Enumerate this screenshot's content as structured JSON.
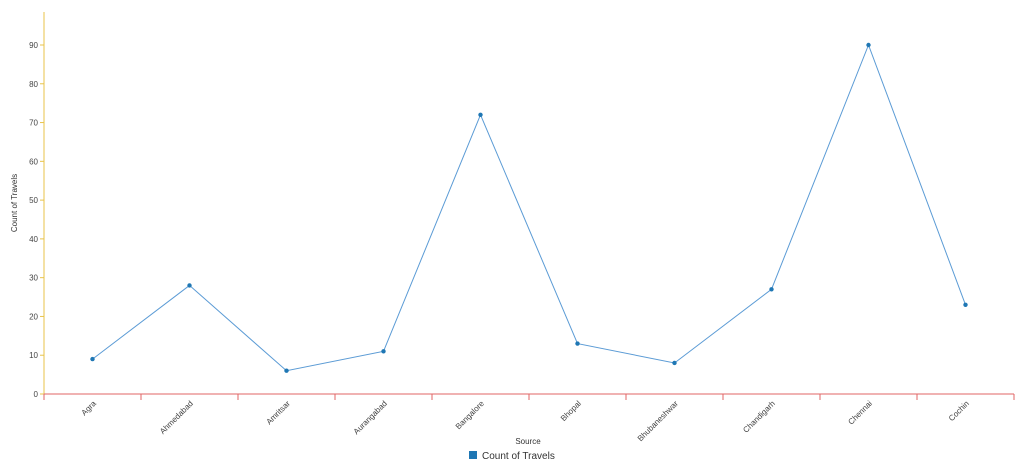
{
  "chart_data": {
    "type": "line",
    "title": "",
    "xlabel": "Source",
    "ylabel": "Count of Travels",
    "categories": [
      "Agra",
      "Ahmedabad",
      "Amritsar",
      "Aurangabad",
      "Bangalore",
      "Bhopal",
      "Bhubaneshwar",
      "Chandigarh",
      "Chennai",
      "Cochin"
    ],
    "series": [
      {
        "name": "Count of Travels",
        "values": [
          9,
          28,
          6,
          11,
          72,
          13,
          8,
          27,
          90,
          23
        ]
      }
    ],
    "ylim": [
      0,
      90
    ],
    "yticks": [
      0,
      10,
      20,
      30,
      40,
      50,
      60,
      70,
      80,
      90
    ],
    "grid": false,
    "legend_position": "bottom-center",
    "colors": {
      "series": "#1f77b4",
      "line": "#5b9bd5",
      "y_axis": "#e8c34a",
      "x_axis": "#e06666"
    }
  }
}
